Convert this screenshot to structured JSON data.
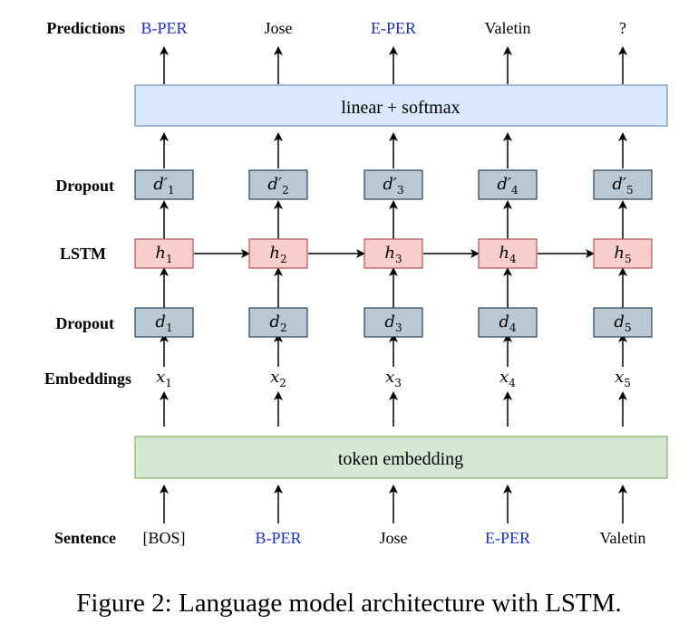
{
  "row_labels": {
    "predictions": "Predictions",
    "dropout_top": "Dropout",
    "lstm": "LSTM",
    "dropout_bottom": "Dropout",
    "embeddings": "Embeddings",
    "sentence": "Sentence"
  },
  "predictions": [
    {
      "text": "B-PER",
      "color": "#1a2fd6"
    },
    {
      "text": "Jose",
      "color": "#000000"
    },
    {
      "text": "E-PER",
      "color": "#1a2fd6"
    },
    {
      "text": "Valetin",
      "color": "#000000"
    },
    {
      "text": "?",
      "color": "#000000"
    }
  ],
  "sentence": [
    {
      "text": "[BOS]",
      "color": "#000000"
    },
    {
      "text": "B-PER",
      "color": "#1a2fd6"
    },
    {
      "text": "Jose",
      "color": "#000000"
    },
    {
      "text": "E-PER",
      "color": "#1a2fd6"
    },
    {
      "text": "Valetin",
      "color": "#000000"
    }
  ],
  "linear_box": {
    "label": "linear + softmax",
    "fill": "#dae8fc",
    "stroke": "#6c8ebf"
  },
  "embedding_box": {
    "label": "token embedding",
    "fill": "#d5e8d4",
    "stroke": "#82b366"
  },
  "dropout_top": [
    {
      "base": "d′",
      "sub": "1"
    },
    {
      "base": "d′",
      "sub": "2"
    },
    {
      "base": "d′",
      "sub": "3"
    },
    {
      "base": "d′",
      "sub": "4"
    },
    {
      "base": "d′",
      "sub": "5"
    }
  ],
  "lstm": [
    {
      "base": "h",
      "sub": "1"
    },
    {
      "base": "h",
      "sub": "2"
    },
    {
      "base": "h",
      "sub": "3"
    },
    {
      "base": "h",
      "sub": "4"
    },
    {
      "base": "h",
      "sub": "5"
    }
  ],
  "dropout_bottom": [
    {
      "base": "d",
      "sub": "1"
    },
    {
      "base": "d",
      "sub": "2"
    },
    {
      "base": "d",
      "sub": "3"
    },
    {
      "base": "d",
      "sub": "4"
    },
    {
      "base": "d",
      "sub": "5"
    }
  ],
  "embeddings": [
    {
      "base": "x",
      "sub": "1"
    },
    {
      "base": "x",
      "sub": "2"
    },
    {
      "base": "x",
      "sub": "3"
    },
    {
      "base": "x",
      "sub": "4"
    },
    {
      "base": "x",
      "sub": "5"
    }
  ],
  "colors": {
    "dropout_fill": "#bac8d3",
    "dropout_stroke": "#23445d",
    "lstm_fill": "#f8cecc",
    "lstm_stroke": "#b85450"
  },
  "caption": "Figure 2: Language model architecture with LSTM."
}
